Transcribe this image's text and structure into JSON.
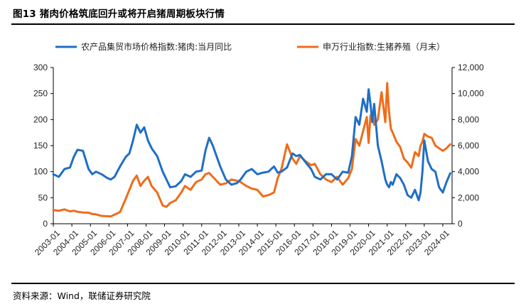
{
  "title": "图13 猪肉价格筑底回升或将开启猪周期板块行情",
  "source": "资料来源：Wind，联储证券研究院",
  "chart_data": {
    "type": "line",
    "grid": false,
    "legend_position": "top",
    "x_ticks": [
      "2003-01",
      "2004-01",
      "2005-01",
      "2006-01",
      "2007-01",
      "2008-01",
      "2009-01",
      "2010-01",
      "2011-01",
      "2012-01",
      "2013-01",
      "2014-01",
      "2015-01",
      "2016-01",
      "2017-01",
      "2018-01",
      "2019-01",
      "2020-01",
      "2021-01",
      "2022-01",
      "2023-01",
      "2024-01"
    ],
    "x_range": [
      2003.0,
      2024.5
    ],
    "y_left": {
      "ticks": [
        "0",
        "50",
        "100",
        "150",
        "200",
        "250",
        "300"
      ],
      "range": [
        0,
        300
      ]
    },
    "y_right": {
      "ticks": [
        "0",
        "2,000",
        "4,000",
        "6,000",
        "8,000",
        "10,000",
        "12,000"
      ],
      "range": [
        0,
        12000
      ]
    },
    "series": [
      {
        "name": "农产品集贸市场价格指数:猪肉:当月同比",
        "axis": "left",
        "color": "#1f6fc5",
        "x": [
          2003.0,
          2003.3,
          2003.6,
          2003.9,
          2004.1,
          2004.3,
          2004.6,
          2004.9,
          2005.1,
          2005.3,
          2005.6,
          2005.9,
          2006.1,
          2006.3,
          2006.6,
          2006.9,
          2007.1,
          2007.3,
          2007.5,
          2007.7,
          2007.9,
          2008.1,
          2008.3,
          2008.6,
          2008.9,
          2009.1,
          2009.3,
          2009.6,
          2009.9,
          2010.1,
          2010.4,
          2010.7,
          2011.0,
          2011.2,
          2011.4,
          2011.6,
          2011.8,
          2012.0,
          2012.3,
          2012.6,
          2012.9,
          2013.1,
          2013.4,
          2013.7,
          2014.0,
          2014.3,
          2014.6,
          2014.9,
          2015.1,
          2015.3,
          2015.6,
          2015.9,
          2016.1,
          2016.3,
          2016.6,
          2016.9,
          2017.1,
          2017.4,
          2017.7,
          2018.0,
          2018.3,
          2018.6,
          2018.9,
          2019.1,
          2019.3,
          2019.5,
          2019.7,
          2019.9,
          2020.0,
          2020.1,
          2020.2,
          2020.3,
          2020.5,
          2020.7,
          2020.9,
          2021.0,
          2021.1,
          2021.2,
          2021.3,
          2021.5,
          2021.7,
          2021.9,
          2022.1,
          2022.3,
          2022.5,
          2022.7,
          2022.8,
          2022.9,
          2023.0,
          2023.2,
          2023.4,
          2023.6,
          2023.8,
          2024.0,
          2024.2,
          2024.4
        ],
        "values": [
          95,
          90,
          105,
          108,
          128,
          142,
          140,
          105,
          95,
          100,
          95,
          88,
          85,
          90,
          110,
          128,
          135,
          160,
          190,
          175,
          185,
          160,
          145,
          130,
          100,
          85,
          70,
          72,
          82,
          95,
          90,
          100,
          102,
          140,
          165,
          150,
          130,
          110,
          85,
          75,
          78,
          85,
          100,
          105,
          95,
          98,
          100,
          110,
          98,
          100,
          108,
          135,
          130,
          132,
          118,
          105,
          90,
          85,
          95,
          95,
          85,
          100,
          98,
          130,
          205,
          190,
          240,
          215,
          258,
          230,
          195,
          230,
          150,
          120,
          85,
          75,
          70,
          80,
          75,
          95,
          88,
          75,
          55,
          50,
          65,
          45,
          60,
          100,
          160,
          120,
          105,
          100,
          70,
          60,
          80,
          97
        ]
      },
      {
        "name": "申万行业指数:生猪养殖（月末）",
        "axis": "right",
        "color": "#ef6c1a",
        "x": [
          2003.0,
          2003.3,
          2003.6,
          2003.9,
          2004.1,
          2004.3,
          2004.6,
          2004.9,
          2005.1,
          2005.3,
          2005.6,
          2005.9,
          2006.1,
          2006.3,
          2006.6,
          2006.9,
          2007.1,
          2007.3,
          2007.5,
          2007.7,
          2007.9,
          2008.1,
          2008.3,
          2008.6,
          2008.9,
          2009.1,
          2009.3,
          2009.6,
          2009.9,
          2010.1,
          2010.4,
          2010.7,
          2011.0,
          2011.2,
          2011.4,
          2011.6,
          2011.8,
          2012.0,
          2012.3,
          2012.6,
          2012.9,
          2013.1,
          2013.4,
          2013.7,
          2014.0,
          2014.3,
          2014.6,
          2014.9,
          2015.1,
          2015.3,
          2015.6,
          2015.9,
          2016.1,
          2016.3,
          2016.6,
          2016.9,
          2017.1,
          2017.4,
          2017.7,
          2018.0,
          2018.3,
          2018.6,
          2018.9,
          2019.1,
          2019.3,
          2019.5,
          2019.7,
          2019.9,
          2020.0,
          2020.1,
          2020.2,
          2020.3,
          2020.5,
          2020.7,
          2020.9,
          2021.0,
          2021.1,
          2021.2,
          2021.3,
          2021.5,
          2021.7,
          2021.9,
          2022.1,
          2022.3,
          2022.5,
          2022.7,
          2022.8,
          2022.9,
          2023.0,
          2023.2,
          2023.4,
          2023.6,
          2023.8,
          2024.0,
          2024.2,
          2024.4
        ],
        "values": [
          1050,
          1000,
          1100,
          950,
          1000,
          920,
          860,
          850,
          750,
          720,
          600,
          580,
          560,
          700,
          900,
          1900,
          2600,
          3300,
          3700,
          2900,
          3300,
          3600,
          2900,
          2400,
          1400,
          1300,
          1600,
          1800,
          2400,
          2900,
          2600,
          3200,
          3400,
          3800,
          3900,
          3600,
          3300,
          3000,
          3100,
          3400,
          3300,
          3200,
          2900,
          2700,
          2600,
          2100,
          2200,
          2400,
          3500,
          4200,
          6100,
          5000,
          4600,
          5200,
          4800,
          4500,
          4600,
          3800,
          3400,
          3200,
          3600,
          3000,
          3500,
          4200,
          6500,
          6000,
          7100,
          8200,
          6200,
          8300,
          8500,
          7600,
          8000,
          10100,
          7800,
          10800,
          8600,
          7300,
          7000,
          6300,
          5900,
          5000,
          4700,
          4300,
          5500,
          5200,
          6000,
          6300,
          6900,
          6700,
          6600,
          6000,
          5800,
          5600,
          5800,
          6100
        ]
      }
    ]
  }
}
